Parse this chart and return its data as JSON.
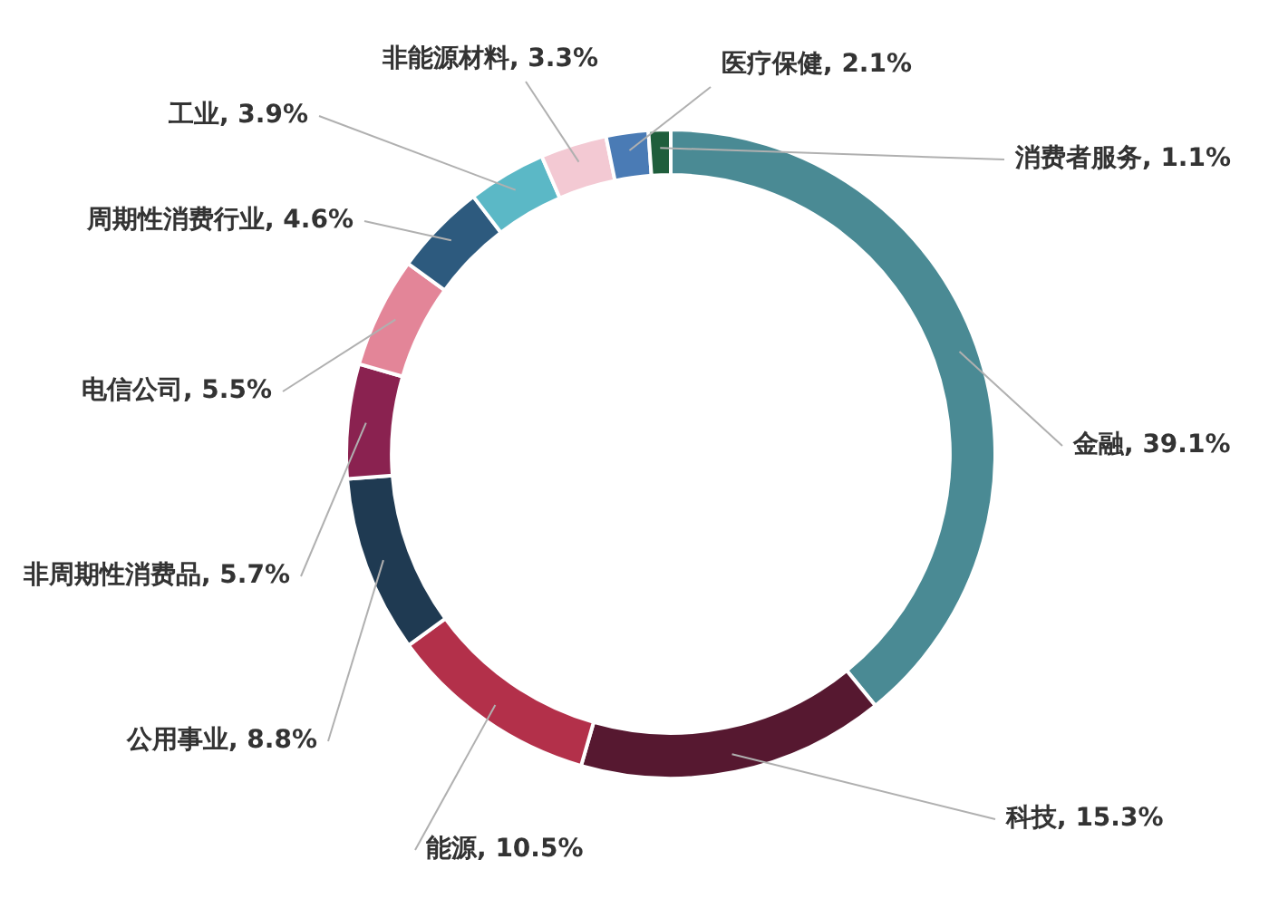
{
  "chart_data": {
    "type": "donut",
    "categories": [
      "金融",
      "科技",
      "能源",
      "公用事业",
      "非周期性消费品",
      "电信公司",
      "周期性消费行业",
      "工业",
      "非能源材料",
      "医疗保健",
      "消费者服务"
    ],
    "values": [
      39.1,
      15.3,
      10.5,
      8.8,
      5.7,
      5.5,
      4.6,
      3.9,
      3.3,
      2.1,
      1.1
    ],
    "value_labels": [
      "39.1%",
      "15.3%",
      "10.5%",
      "8.8%",
      "5.7%",
      "5.5%",
      "4.6%",
      "3.9%",
      "3.3%",
      "2.1%",
      "1.1%"
    ],
    "colors": [
      "#4a8a94",
      "#561830",
      "#b3304a",
      "#1f3a52",
      "#8a2250",
      "#e38598",
      "#2d5a7e",
      "#5bb8c6",
      "#f3c9d3",
      "#4a7bb5",
      "#1f5e3c"
    ],
    "legend": false
  }
}
